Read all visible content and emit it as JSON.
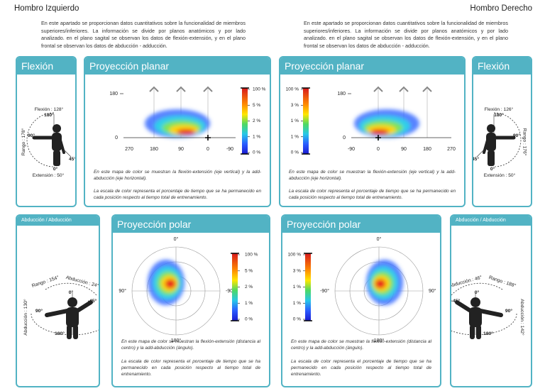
{
  "left": {
    "header": "Hombro Izquierdo",
    "intro": "En este apartado se proporcionan datos cuantitativos sobre la funcionalidad de miembros superiores/inferiores. La información se divide por planos anatómicos y por lado analizado. en el plano sagital se observan los datos de flexión-extensión, y en el plano frontal se observan los datos de abducción - adducción.",
    "flexion": {
      "title": "Flexión",
      "flexion": "Flexión : 128°",
      "deg180": "180°",
      "deg90": "90°",
      "deg45": "45°",
      "deg0": "0°",
      "range": "Rango : 178°",
      "extension": "Extensión : 50°"
    },
    "planar": {
      "title": "Proyección planar",
      "yticks": [
        "180",
        "0"
      ],
      "xticks": [
        "270",
        "180",
        "90",
        "0",
        "-90"
      ],
      "colorbar": [
        "100 %",
        "5 %",
        "2 %",
        "1 %",
        "0 %"
      ],
      "captions": [
        "En este mapa de color se muestran la flexión-extensión (eje vertical) y la add-abducción (eje horizontal).",
        "La escala de color representa el porcentaje de tiempo que se ha permanecido en cada posición respecto al tiempo total de entrenamiento."
      ]
    },
    "abduction": {
      "title": "Abducción / Abducción",
      "range": "Rango : 154°",
      "abduction": "Abducción : 24°",
      "deg0": "0°",
      "deg_45": "-45°",
      "deg90": "90°",
      "deg180": "180°",
      "adduction": "Abducción : 130°"
    },
    "polar": {
      "title": "Proyección polar",
      "labels": [
        "0°",
        "90°",
        "-90°",
        "180°"
      ],
      "colorbar": [
        "100 %",
        "5 %",
        "2 %",
        "1 %",
        "0 %"
      ],
      "captions": [
        "En este mapa de color se muestran la flexión-extensión (distancia al centro) y la add-abducción (ángulo).",
        "La escala de color representa el porcentaje de tiempo que se ha permanecido en cada posición respecto al tiempo total de entrenamiento."
      ]
    }
  },
  "right": {
    "header": "Hombro Derecho",
    "intro": "En este apartado se proporcionan datos cuantitativos sobre la funcionalidad de miembros superiores/inferiores. La información se divide por planos anatómicos y por lado analizado. en el plano sagital se observan los datos de flexión-extensión, y en el plano frontal se observan los datos de abducción - adducción.",
    "flexion": {
      "title": "Flexión",
      "flexion": "Flexión : 126°",
      "deg180": "180°",
      "deg90": "90°",
      "deg45": "45°",
      "deg0": "0°",
      "range": "Rango : 176°",
      "extension": "Extensión : 50°"
    },
    "planar": {
      "title": "Proyección planar",
      "yticks": [
        "180",
        "0"
      ],
      "xticks": [
        "-90",
        "0",
        "90",
        "180",
        "270"
      ],
      "colorbar": [
        "100 %",
        "3 %",
        "1 %",
        "1 %",
        "0 %"
      ],
      "captions": [
        "En este mapa de color se muestran la flexión-extensión (eje vertical) y la add-abducción (eje horizontal).",
        "La escala de color representa el porcentaje de tiempo que se ha permanecido en cada posición respecto al tiempo total de entrenamiento."
      ]
    },
    "abduction": {
      "title": "Abducción / Abducción",
      "range": "Rango : 188°",
      "abduction": "Abducción : 46°",
      "deg0": "0°",
      "deg_45": "-45°",
      "deg90": "90°",
      "deg180": "180°",
      "adduction": "Abducción : 142°"
    },
    "polar": {
      "title": "Proyección polar",
      "labels": [
        "0°",
        "-90°",
        "90°",
        "180°"
      ],
      "colorbar": [
        "100 %",
        "3 %",
        "1 %",
        "1 %",
        "0 %"
      ],
      "captions": [
        "En este mapa de color se muestran la flexión-extensión (distancia al centro) y la add-abducción (ángulo).",
        "La escala de color representa el porcentaje de tiempo que se ha permanecido en cada posición respecto al tiempo total de entrenamiento."
      ]
    }
  }
}
